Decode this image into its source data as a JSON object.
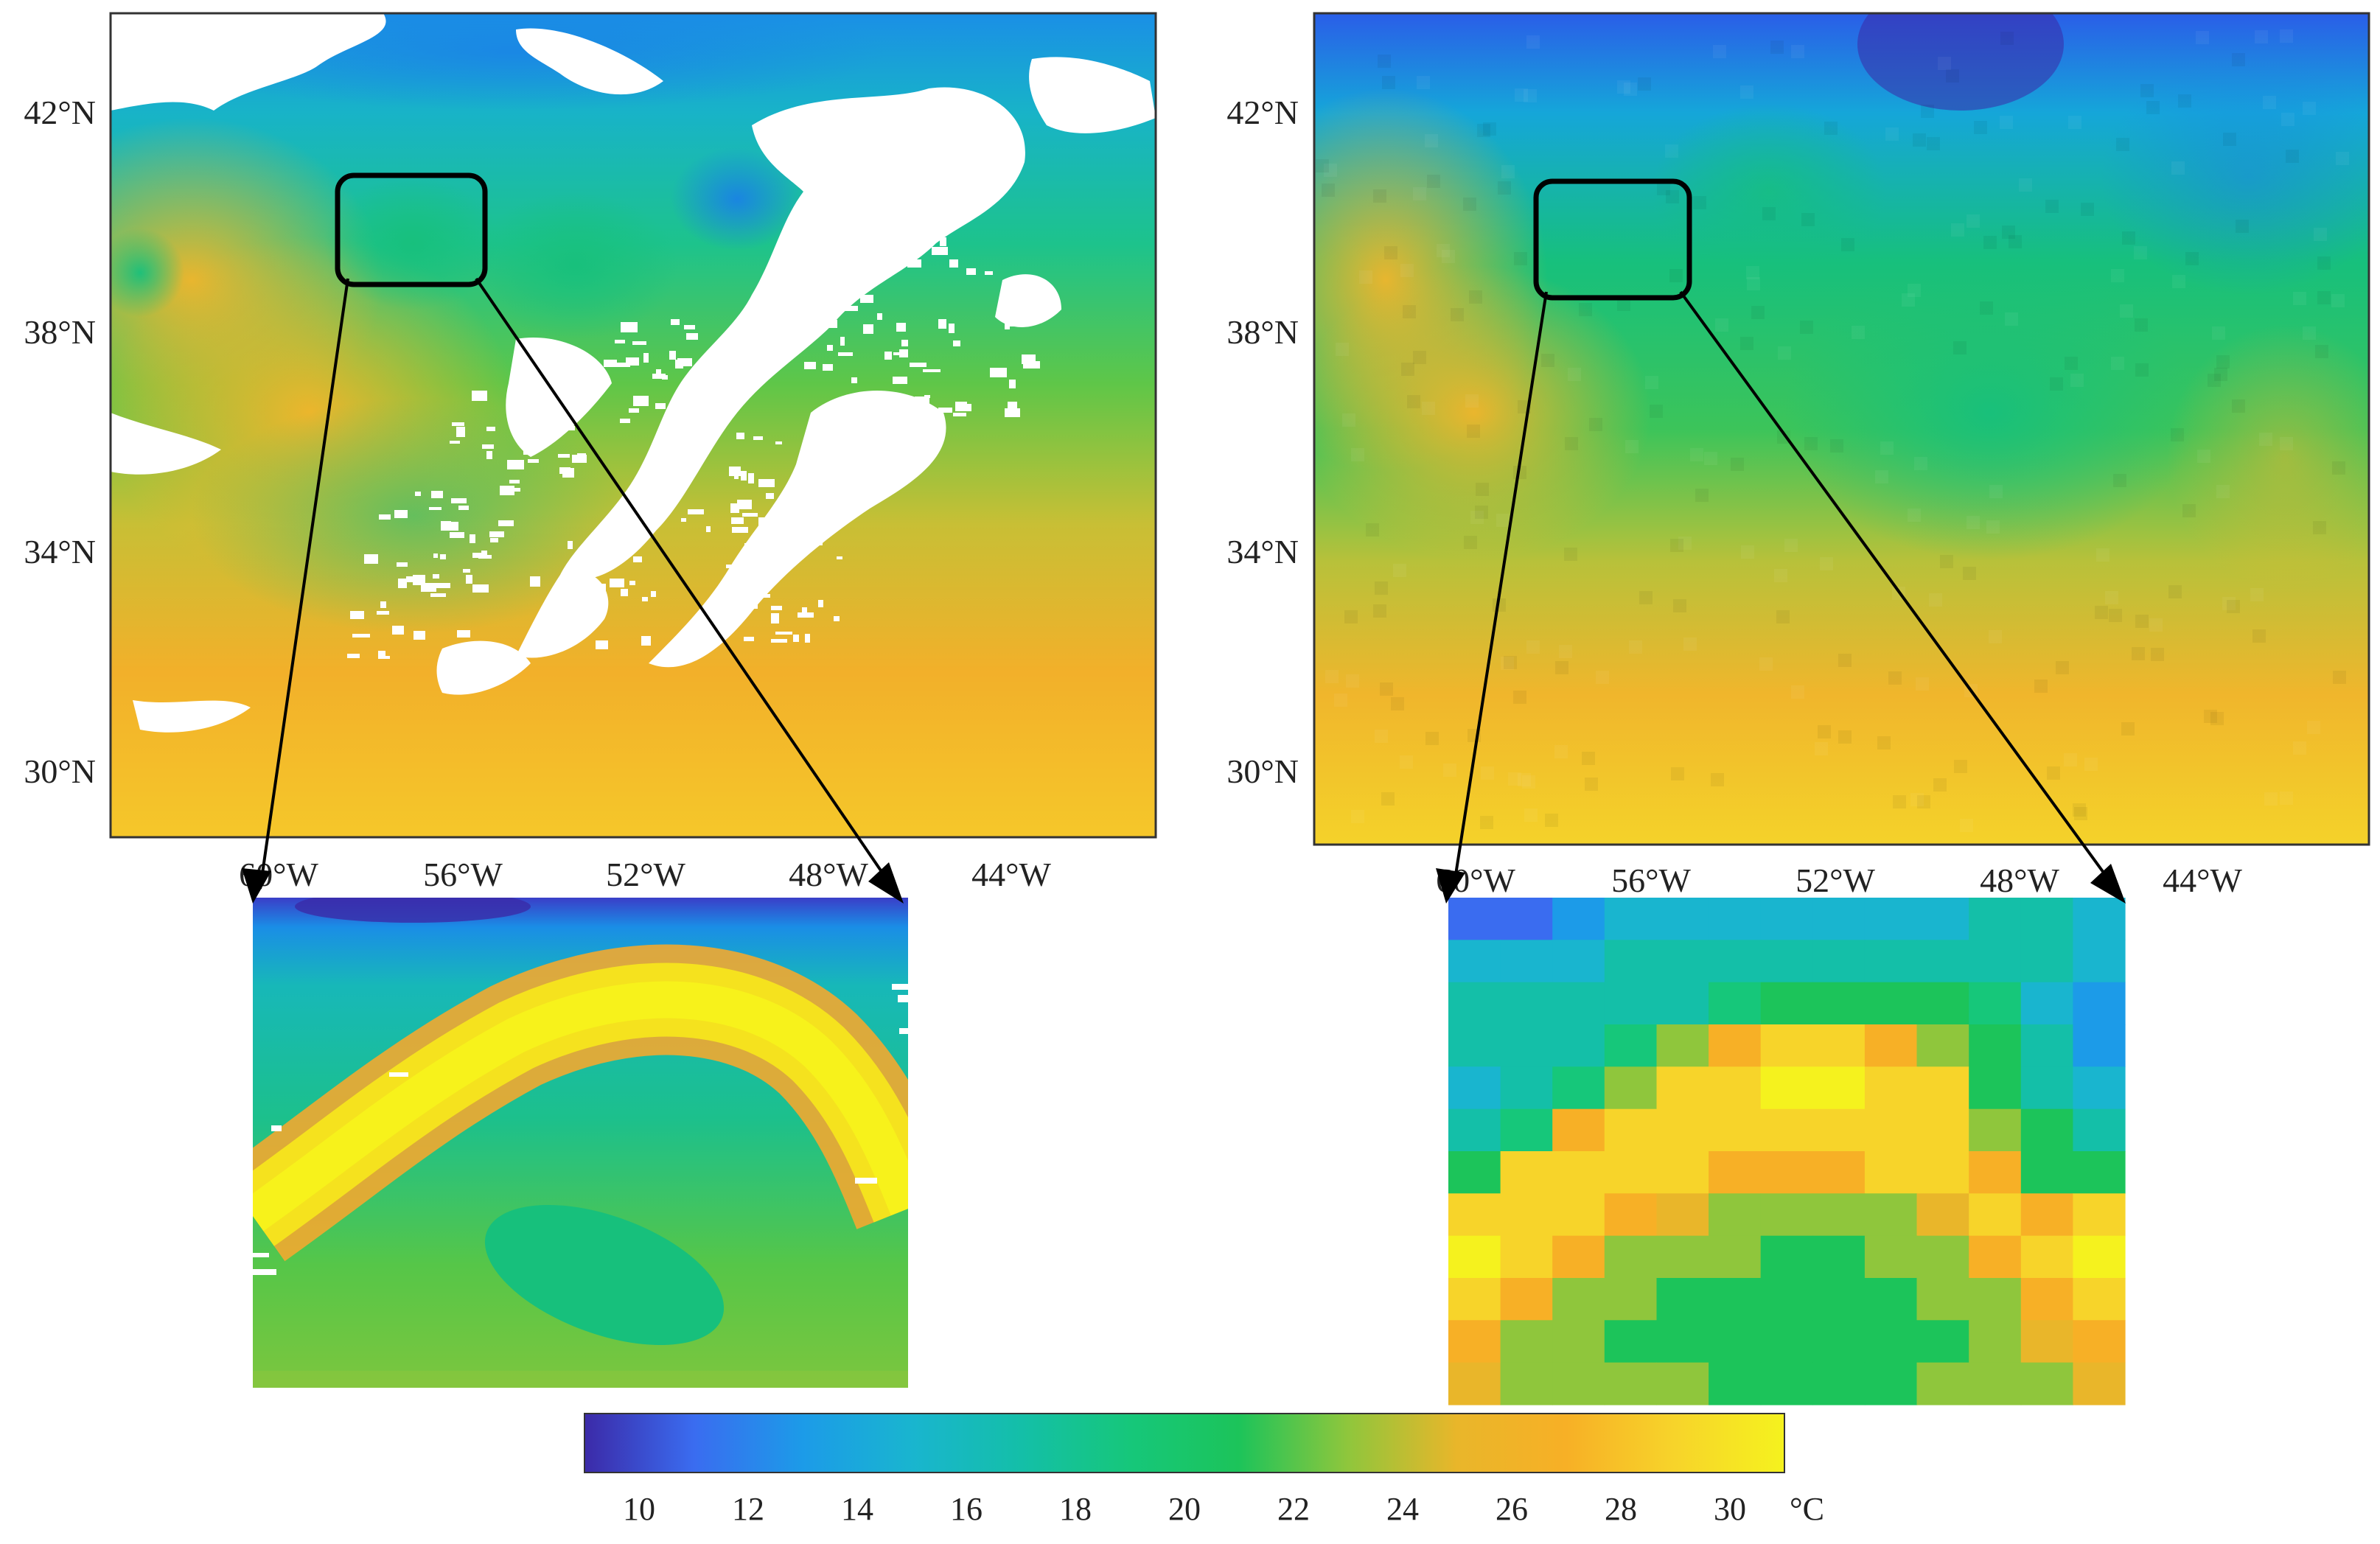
{
  "figure": {
    "panels": [
      {
        "id": "left",
        "y_ticks": [
          "42°N",
          "38°N",
          "34°N",
          "30°N"
        ],
        "x_ticks": [
          "60°W",
          "56°W",
          "52°W",
          "48°W",
          "44°W"
        ],
        "has_cloud_gaps": true,
        "inset_style": "smooth"
      },
      {
        "id": "right",
        "y_ticks": [
          "42°N",
          "38°N",
          "34°N",
          "30°N"
        ],
        "x_ticks": [
          "60°W",
          "56°W",
          "52°W",
          "48°W",
          "44°W"
        ],
        "has_cloud_gaps": false,
        "inset_style": "pixelated"
      }
    ],
    "colorbar": {
      "ticks": [
        "10",
        "12",
        "14",
        "16",
        "18",
        "20",
        "22",
        "24",
        "26",
        "28",
        "30"
      ],
      "unit": "°C",
      "range": [
        9,
        31
      ],
      "colors": [
        "#3b2aa8",
        "#3a6cf0",
        "#1c9be8",
        "#19b5cf",
        "#14bfa8",
        "#16c77a",
        "#1cc45a",
        "#8fc63c",
        "#e9b62a",
        "#f7b026",
        "#f7d42a",
        "#f5f21e"
      ]
    }
  }
}
